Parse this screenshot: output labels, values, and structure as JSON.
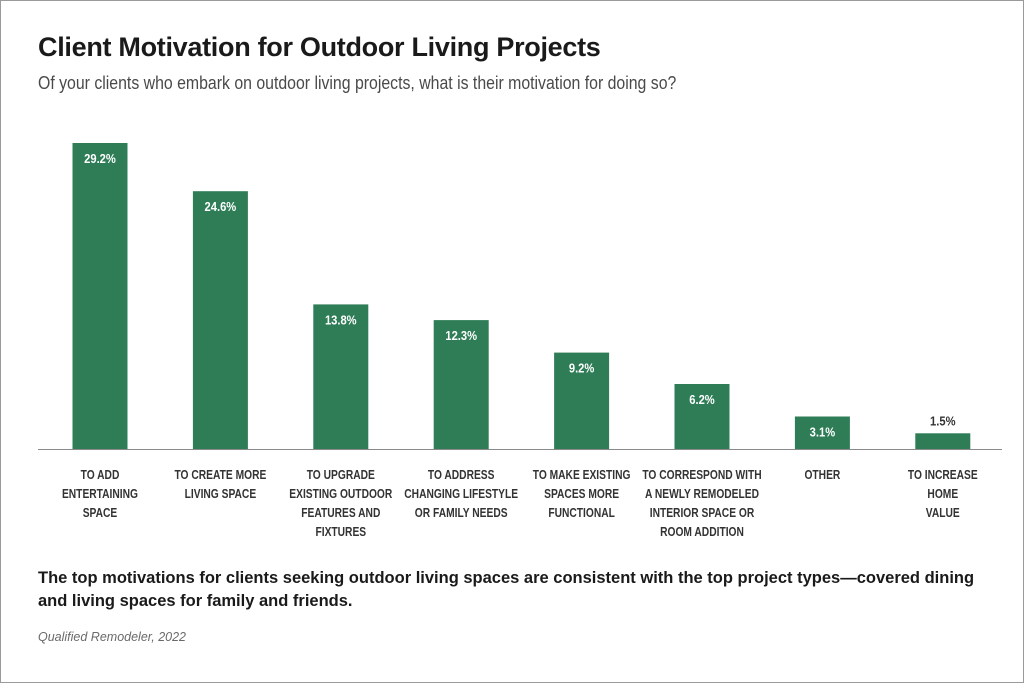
{
  "title": "Client Motivation for Outdoor Living Projects",
  "subtitle": "Of your clients who embark on outdoor living projects, what is their motivation for doing so?",
  "caption": "The top motivations for clients seeking outdoor living spaces are consistent with the top project types—covered dining and living spaces for family and friends.",
  "source": "Qualified Remodeler, 2022",
  "colors": {
    "bar": "#2e7d57",
    "axis": "#8a8a8a",
    "label_inside": "#ffffff",
    "label_outside": "#333333",
    "category_text": "#333333"
  },
  "chart_data": {
    "type": "bar",
    "categories": [
      [
        "TO ADD",
        "ENTERTAINING",
        "SPACE"
      ],
      [
        "TO CREATE MORE",
        "LIVING SPACE"
      ],
      [
        "TO UPGRADE",
        "EXISTING OUTDOOR",
        "FEATURES AND",
        "FIXTURES"
      ],
      [
        "TO ADDRESS",
        "CHANGING LIFESTYLE",
        "OR FAMILY NEEDS"
      ],
      [
        "TO MAKE EXISTING",
        "SPACES MORE",
        "FUNCTIONAL"
      ],
      [
        "TO CORRESPOND WITH",
        "A NEWLY REMODELED",
        "INTERIOR SPACE OR",
        "ROOM ADDITION"
      ],
      [
        "OTHER"
      ],
      [
        "TO INCREASE",
        "HOME",
        "VALUE"
      ]
    ],
    "values": [
      29.2,
      24.6,
      13.8,
      12.3,
      9.2,
      6.2,
      3.1,
      1.5
    ],
    "value_labels": [
      "29.2%",
      "24.6%",
      "13.8%",
      "12.3%",
      "9.2%",
      "6.2%",
      "3.1%",
      "1.5%"
    ],
    "ylim": [
      0,
      30
    ],
    "grid": false,
    "legend": "none"
  }
}
